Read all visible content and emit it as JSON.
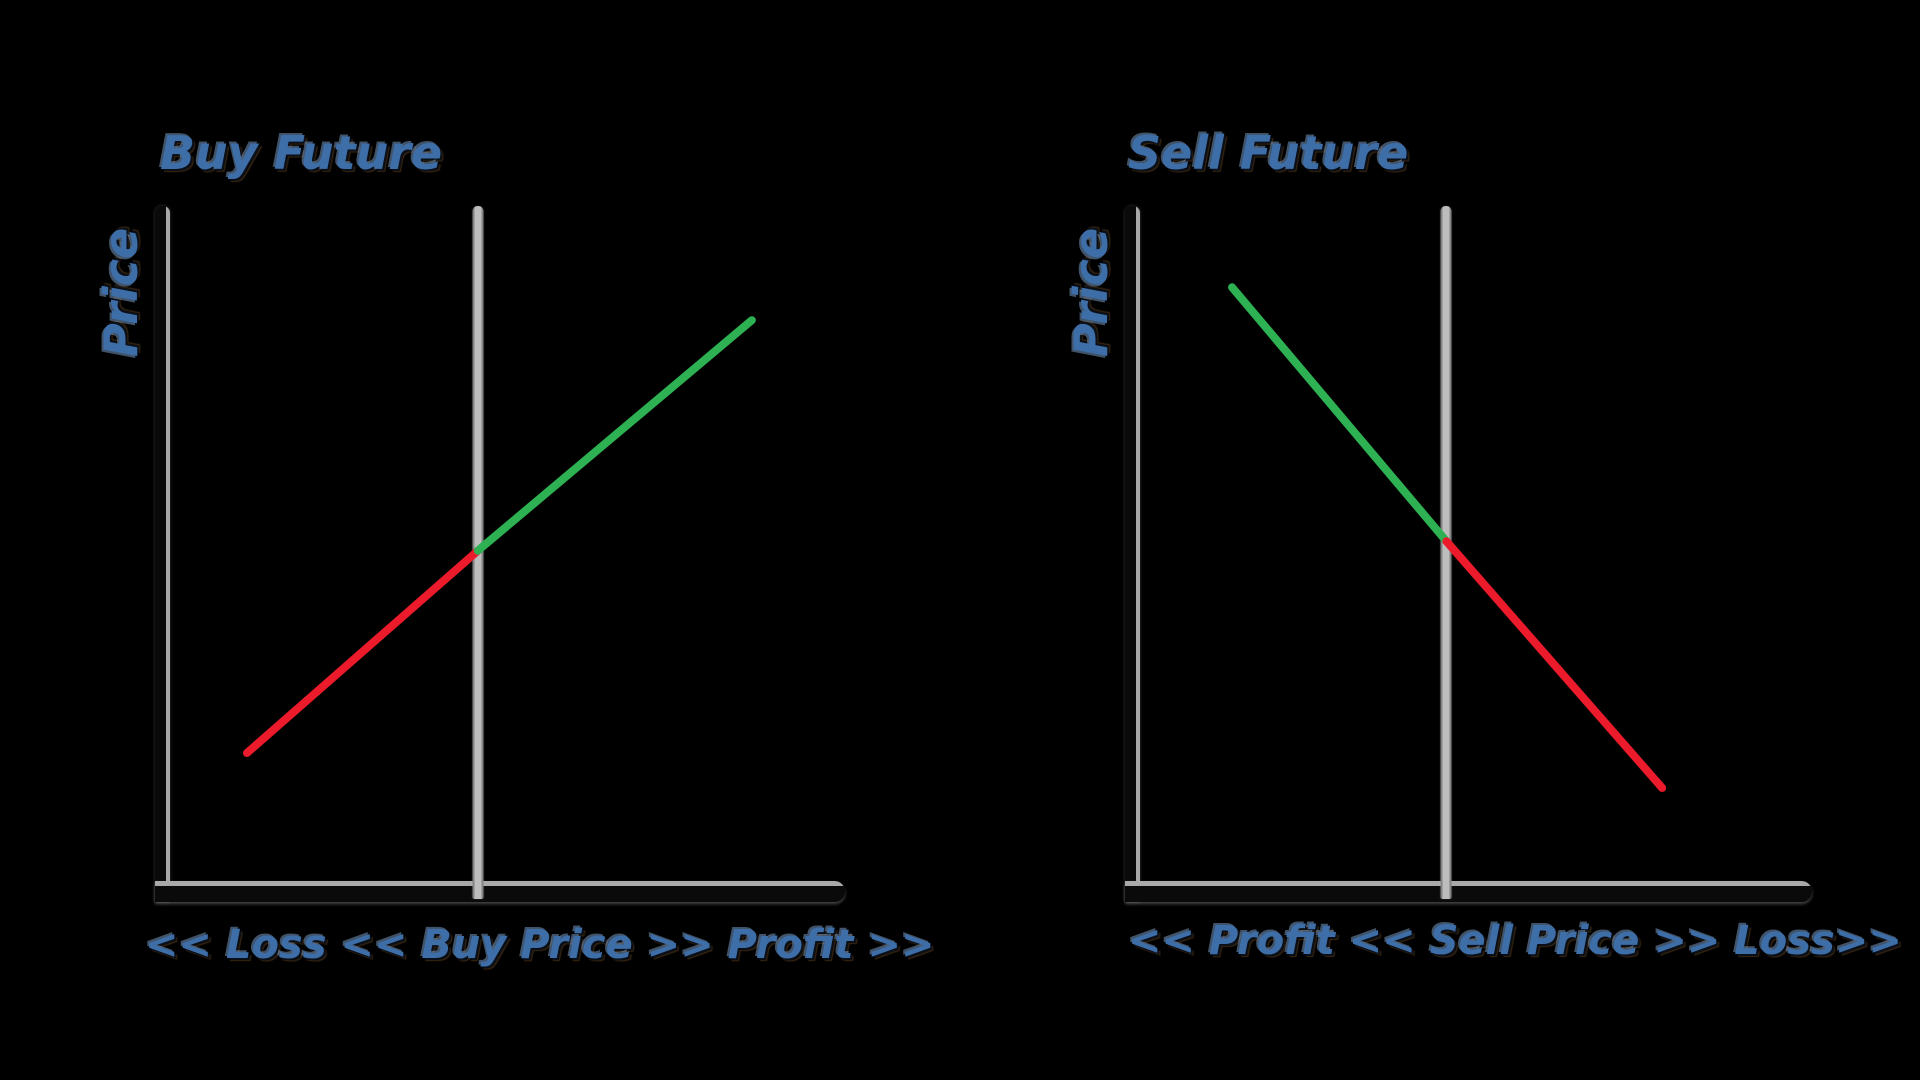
{
  "page": {
    "background_color": "#000000",
    "text_color": "#3e6ea8"
  },
  "chart_data": [
    {
      "type": "line",
      "title": "Buy Future",
      "ylabel": "Price",
      "xlabel": "<< Loss << Buy Price >> Profit >>",
      "xlim": [
        0,
        100
      ],
      "ylim": [
        0,
        100
      ],
      "grid": false,
      "tick_labels": "none",
      "legend": "none",
      "axis_color": "#0a0a0a",
      "axis_edge_color": "#a9a9a9",
      "marker": {
        "name": "buy-price-line",
        "x": 45.6,
        "color": "#bdbdbd"
      },
      "series": [
        {
          "name": "loss-segment",
          "color": "#ec1b2c",
          "x": [
            11.4,
            45.6
          ],
          "y": [
            18.9,
            49.0
          ]
        },
        {
          "name": "profit-segment",
          "color": "#2db153",
          "x": [
            45.6,
            86.2
          ],
          "y": [
            49.0,
            83.3
          ]
        }
      ]
    },
    {
      "type": "line",
      "title": "Sell Future",
      "ylabel": "Price",
      "xlabel": "<< Profit << Sell Price >> Loss>>",
      "xlim": [
        0,
        100
      ],
      "ylim": [
        0,
        100
      ],
      "grid": false,
      "tick_labels": "none",
      "legend": "none",
      "axis_color": "#0a0a0a",
      "axis_edge_color": "#a9a9a9",
      "marker": {
        "name": "sell-price-line",
        "x": 45.6,
        "color": "#bdbdbd"
      },
      "series": [
        {
          "name": "profit-segment",
          "color": "#2db153",
          "x": [
            13.7,
            45.6
          ],
          "y": [
            88.2,
            50.4
          ]
        },
        {
          "name": "loss-segment",
          "color": "#ec1b2c",
          "x": [
            45.6,
            77.7
          ],
          "y": [
            50.4,
            13.7
          ]
        }
      ]
    }
  ]
}
